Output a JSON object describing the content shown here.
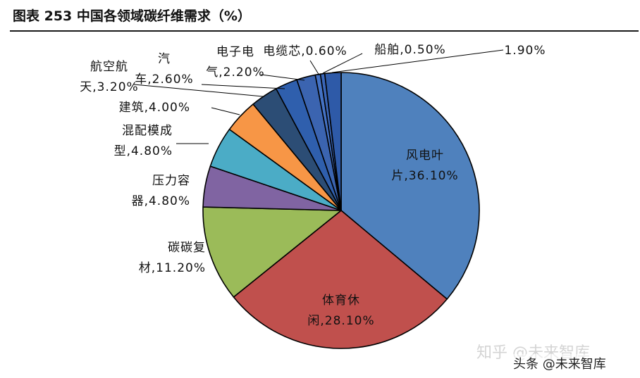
{
  "figure": {
    "title": "图表 253 中国各领域碳纤维需求（%）"
  },
  "colors": {
    "background": "#ffffff",
    "slice_stroke": "#000000",
    "leader": "#000000",
    "label_text": "#111111"
  },
  "watermark": {
    "line1": "知乎 @未来智库",
    "line2": "头条 @未来智库"
  },
  "chart_data": {
    "type": "pie",
    "title": "",
    "unit": "%",
    "start_angle_deg": 0,
    "direction": "clockwise",
    "slices": [
      {
        "name": "风电叶片",
        "value": 36.1,
        "label_lines": [
          "风电叶",
          "片,36.10%"
        ],
        "color": "#4f81bd",
        "label_inside": true
      },
      {
        "name": "体育休闲",
        "value": 28.1,
        "label_lines": [
          "体育休",
          "闲,28.10%"
        ],
        "color": "#c0504d",
        "label_inside": true
      },
      {
        "name": "碳碳复材",
        "value": 11.2,
        "label_lines": [
          "碳碳复",
          "材,11.20%"
        ],
        "color": "#9bbb59",
        "label_inside": false
      },
      {
        "name": "压力容器",
        "value": 4.8,
        "label_lines": [
          "压力容",
          "器,4.80%"
        ],
        "color": "#8064a2",
        "label_inside": false
      },
      {
        "name": "混配模成型",
        "value": 4.8,
        "label_lines": [
          "混配模成",
          "型,4.80%"
        ],
        "color": "#4bacc6",
        "label_inside": false
      },
      {
        "name": "建筑",
        "value": 4.0,
        "label_lines": [
          "建筑,4.00%"
        ],
        "color": "#f79646",
        "label_inside": false
      },
      {
        "name": "航空航天",
        "value": 3.2,
        "label_lines": [
          "航空航",
          "天,3.20%"
        ],
        "color": "#2c4d75",
        "label_inside": false
      },
      {
        "name": "汽车",
        "value": 2.6,
        "label_lines": [
          "汽",
          "车,2.60%"
        ],
        "color": "#2f5fad",
        "label_inside": false
      },
      {
        "name": "电子电气",
        "value": 2.2,
        "label_lines": [
          "电子电",
          "气,2.20%"
        ],
        "color": "#3b64b0",
        "label_inside": false
      },
      {
        "name": "电缆芯",
        "value": 0.6,
        "label_lines": [
          "电缆芯,0.60%"
        ],
        "color": "#4472c4",
        "label_inside": false
      },
      {
        "name": "船舶",
        "value": 0.5,
        "label_lines": [
          "船舶,0.50%"
        ],
        "color": "#3a66b8",
        "label_inside": false
      },
      {
        "name": "",
        "value": 1.9,
        "label_lines": [
          "1.90%"
        ],
        "color": "#2e5aa8",
        "label_inside": false
      }
    ]
  }
}
